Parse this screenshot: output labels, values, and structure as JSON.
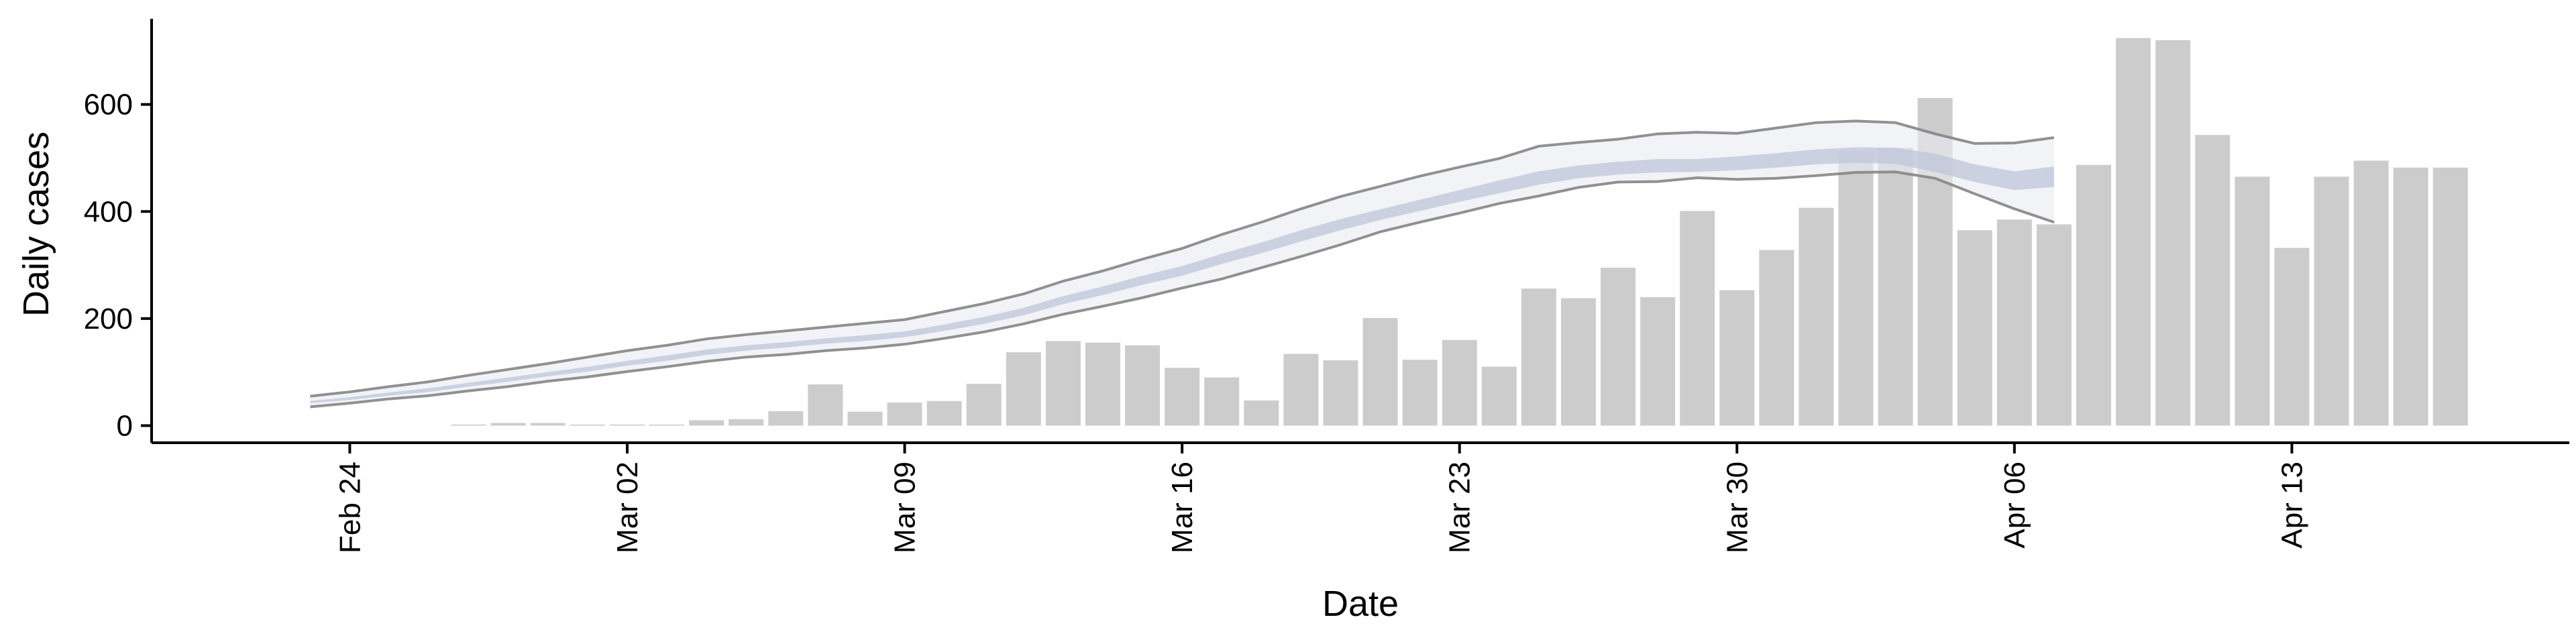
{
  "chart_data": {
    "type": "bar",
    "xlabel": "Date",
    "ylabel": "Daily cases",
    "x_range": [
      "2020-02-19",
      "2020-04-20"
    ],
    "ylim": [
      -32,
      760
    ],
    "x_ticks": [
      {
        "date": "2020-02-24",
        "label": "Feb 24"
      },
      {
        "date": "2020-03-02",
        "label": "Mar 02"
      },
      {
        "date": "2020-03-09",
        "label": "Mar 09"
      },
      {
        "date": "2020-03-16",
        "label": "Mar 16"
      },
      {
        "date": "2020-03-23",
        "label": "Mar 23"
      },
      {
        "date": "2020-03-30",
        "label": "Mar 30"
      },
      {
        "date": "2020-04-06",
        "label": "Apr 06"
      },
      {
        "date": "2020-04-13",
        "label": "Apr 13"
      }
    ],
    "y_ticks": [
      0,
      200,
      400,
      600
    ],
    "grid": false,
    "colors": {
      "bars": "#cccccc",
      "band_outer": "#e9ebf2",
      "band_inner": "#bec6da",
      "band_lines": "#858585",
      "axis": "#000000"
    },
    "bars": {
      "dates": [
        "2020-02-27",
        "2020-02-28",
        "2020-02-29",
        "2020-03-01",
        "2020-03-02",
        "2020-03-03",
        "2020-03-04",
        "2020-03-05",
        "2020-03-06",
        "2020-03-07",
        "2020-03-08",
        "2020-03-09",
        "2020-03-10",
        "2020-03-11",
        "2020-03-12",
        "2020-03-13",
        "2020-03-14",
        "2020-03-15",
        "2020-03-16",
        "2020-03-17",
        "2020-03-18",
        "2020-03-19",
        "2020-03-20",
        "2020-03-21",
        "2020-03-22",
        "2020-03-23",
        "2020-03-24",
        "2020-03-25",
        "2020-03-26",
        "2020-03-27",
        "2020-03-28",
        "2020-03-29",
        "2020-03-30",
        "2020-03-31",
        "2020-04-01",
        "2020-04-02",
        "2020-04-03",
        "2020-04-04",
        "2020-04-05",
        "2020-04-06",
        "2020-04-07",
        "2020-04-08",
        "2020-04-09",
        "2020-04-10",
        "2020-04-11",
        "2020-04-12",
        "2020-04-13",
        "2020-04-14",
        "2020-04-15",
        "2020-04-16",
        "2020-04-17"
      ],
      "values": [
        2,
        5,
        5,
        2,
        2,
        2,
        10,
        12,
        27,
        77,
        26,
        43,
        46,
        78,
        137,
        158,
        155,
        150,
        108,
        90,
        47,
        134,
        122,
        201,
        123,
        160,
        110,
        256,
        238,
        295,
        240,
        401,
        253,
        328,
        407,
        512,
        519,
        612,
        365,
        385,
        376,
        487,
        724,
        720,
        543,
        465,
        332,
        465,
        495,
        482,
        482
      ]
    },
    "band": {
      "dates": [
        "2020-02-23",
        "2020-02-24",
        "2020-02-25",
        "2020-02-26",
        "2020-02-27",
        "2020-02-28",
        "2020-02-29",
        "2020-03-01",
        "2020-03-02",
        "2020-03-03",
        "2020-03-04",
        "2020-03-05",
        "2020-03-06",
        "2020-03-07",
        "2020-03-08",
        "2020-03-09",
        "2020-03-10",
        "2020-03-11",
        "2020-03-12",
        "2020-03-13",
        "2020-03-14",
        "2020-03-15",
        "2020-03-16",
        "2020-03-17",
        "2020-03-18",
        "2020-03-19",
        "2020-03-20",
        "2020-03-21",
        "2020-03-22",
        "2020-03-23",
        "2020-03-24",
        "2020-03-25",
        "2020-03-26",
        "2020-03-27",
        "2020-03-28",
        "2020-03-29",
        "2020-03-30",
        "2020-03-31",
        "2020-04-01",
        "2020-04-02",
        "2020-04-03",
        "2020-04-04",
        "2020-04-05",
        "2020-04-06",
        "2020-04-07"
      ],
      "upper": [
        55,
        63,
        73,
        82,
        94,
        105,
        116,
        128,
        140,
        150,
        162,
        170,
        177,
        184,
        191,
        198,
        213,
        228,
        246,
        270,
        289,
        311,
        331,
        357,
        380,
        405,
        428,
        447,
        466,
        483,
        499,
        522,
        529,
        535,
        545,
        548,
        546,
        556,
        566,
        569,
        566,
        545,
        527,
        528,
        538
      ],
      "lower": [
        35,
        42,
        50,
        56,
        65,
        73,
        83,
        91,
        101,
        110,
        120,
        128,
        133,
        140,
        145,
        152,
        163,
        175,
        190,
        208,
        223,
        239,
        257,
        274,
        295,
        316,
        338,
        362,
        380,
        397,
        415,
        429,
        445,
        455,
        456,
        463,
        460,
        462,
        467,
        473,
        474,
        462,
        433,
        405,
        380
      ],
      "inner_upper": [
        46,
        53,
        62,
        70,
        80,
        90,
        100,
        110,
        121,
        131,
        142,
        150,
        156,
        163,
        169,
        176,
        189,
        203,
        220,
        242,
        260,
        280,
        298,
        321,
        342,
        365,
        386,
        404,
        422,
        440,
        458,
        475,
        486,
        493,
        498,
        498,
        503,
        509,
        516,
        520,
        519,
        508,
        488,
        475,
        484
      ],
      "inner_lower": [
        42,
        48,
        56,
        63,
        73,
        82,
        92,
        101,
        112,
        121,
        132,
        140,
        146,
        153,
        158,
        165,
        177,
        190,
        206,
        227,
        244,
        263,
        280,
        302,
        322,
        344,
        365,
        384,
        401,
        418,
        434,
        450,
        462,
        469,
        473,
        474,
        477,
        482,
        488,
        491,
        489,
        474,
        455,
        440,
        446
      ]
    }
  }
}
